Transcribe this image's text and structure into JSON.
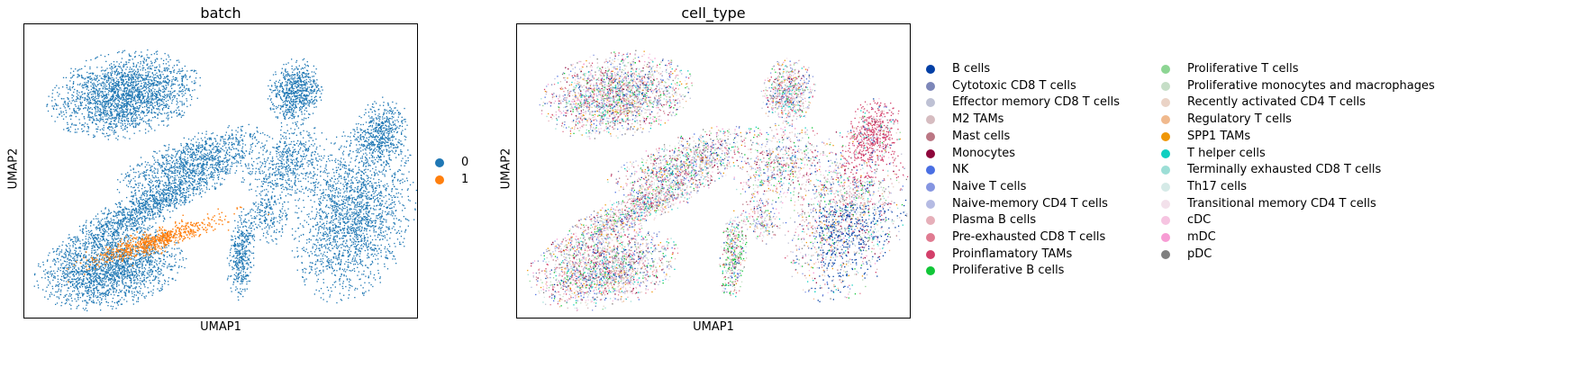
{
  "chart_data": [
    {
      "type": "scatter",
      "title": "batch",
      "xlabel": "UMAP1",
      "ylabel": "UMAP2",
      "grid": false,
      "legend_position": "right",
      "legend": [
        {
          "label": "0",
          "color": "#1f77b4"
        },
        {
          "label": "1",
          "color": "#ff7f0e"
        }
      ]
    },
    {
      "type": "scatter",
      "title": "cell_type",
      "xlabel": "UMAP1",
      "ylabel": "UMAP2",
      "grid": false,
      "legend_position": "right",
      "legend": [
        {
          "label": "B cells",
          "color": "#023fa5"
        },
        {
          "label": "Cytotoxic CD8 T cells",
          "color": "#7d87b9"
        },
        {
          "label": "Effector memory CD8 T cells",
          "color": "#bec1d4"
        },
        {
          "label": "M2 TAMs",
          "color": "#d6bcc0"
        },
        {
          "label": "Mast cells",
          "color": "#bb7784"
        },
        {
          "label": "Monocytes",
          "color": "#8e063b"
        },
        {
          "label": "NK",
          "color": "#4a6fe3"
        },
        {
          "label": "Naive T cells",
          "color": "#8595e1"
        },
        {
          "label": "Naive-memory CD4 T cells",
          "color": "#b5bbe3"
        },
        {
          "label": "Plasma B cells",
          "color": "#e6afb9"
        },
        {
          "label": "Pre-exhausted CD8 T cells",
          "color": "#e07b91"
        },
        {
          "label": "Proinflamatory TAMs",
          "color": "#d33f6a"
        },
        {
          "label": "Proliferative B cells",
          "color": "#11c638"
        },
        {
          "label": "Proliferative T cells",
          "color": "#8dd593"
        },
        {
          "label": "Proliferative monocytes and macrophages",
          "color": "#c6dec7"
        },
        {
          "label": "Recently activated CD4 T cells",
          "color": "#ead3c6"
        },
        {
          "label": "Regulatory T cells",
          "color": "#f0b98d"
        },
        {
          "label": "SPP1 TAMs",
          "color": "#ef9708"
        },
        {
          "label": "T helper cells",
          "color": "#0fcfc0"
        },
        {
          "label": "Terminally exhausted CD8 T cells",
          "color": "#9cded6"
        },
        {
          "label": "Th17 cells",
          "color": "#d5eae7"
        },
        {
          "label": "Transitional memory CD4 T cells",
          "color": "#f3e1eb"
        },
        {
          "label": "cDC",
          "color": "#f6c4e1"
        },
        {
          "label": "mDC",
          "color": "#f79cd4"
        },
        {
          "label": "pDC",
          "color": "#7f7f7f"
        }
      ]
    }
  ]
}
